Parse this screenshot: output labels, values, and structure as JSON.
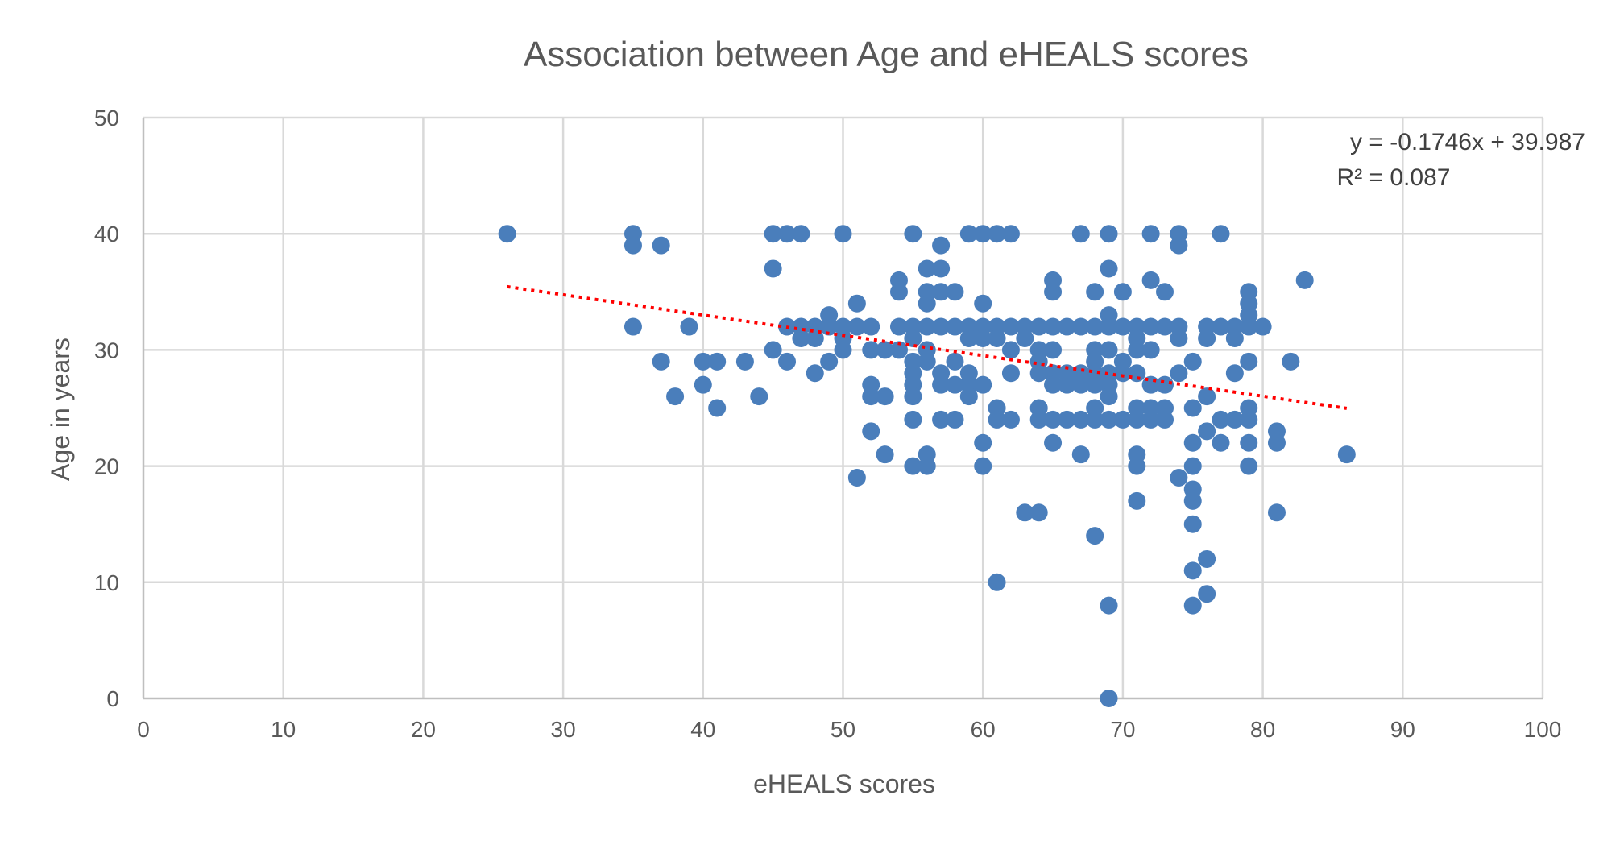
{
  "chart_data": {
    "type": "scatter",
    "title": "Association between Age and eHEALS scores",
    "xlabel": "eHEALS scores",
    "ylabel": "Age in years",
    "xlim": [
      0,
      100
    ],
    "ylim": [
      0,
      50
    ],
    "xticks": [
      0,
      10,
      20,
      30,
      40,
      50,
      60,
      70,
      80,
      90,
      100
    ],
    "yticks": [
      0,
      10,
      20,
      30,
      40,
      50
    ],
    "grid": true,
    "marker_color": "#4a7ebb",
    "trendline": {
      "type": "linear",
      "slope": -0.1746,
      "intercept": 39.987,
      "x_range": [
        26,
        86
      ],
      "color": "#ff0000",
      "style": "dotted",
      "equation": "y = -0.1746x + 39.987",
      "r_squared": "R² = 0.087"
    },
    "points": [
      [
        26,
        40
      ],
      [
        35,
        40
      ],
      [
        35,
        39
      ],
      [
        35,
        32
      ],
      [
        37,
        39
      ],
      [
        37,
        29
      ],
      [
        38,
        26
      ],
      [
        39,
        32
      ],
      [
        40,
        29
      ],
      [
        40,
        27
      ],
      [
        41,
        29
      ],
      [
        41,
        25
      ],
      [
        43,
        29
      ],
      [
        44,
        26
      ],
      [
        45,
        40
      ],
      [
        45,
        37
      ],
      [
        45,
        30
      ],
      [
        46,
        40
      ],
      [
        46,
        32
      ],
      [
        46,
        29
      ],
      [
        47,
        40
      ],
      [
        47,
        32
      ],
      [
        47,
        31
      ],
      [
        48,
        32
      ],
      [
        48,
        31
      ],
      [
        48,
        28
      ],
      [
        49,
        33
      ],
      [
        49,
        32
      ],
      [
        49,
        29
      ],
      [
        50,
        40
      ],
      [
        50,
        32
      ],
      [
        50,
        31
      ],
      [
        50,
        30
      ],
      [
        51,
        34
      ],
      [
        51,
        32
      ],
      [
        51,
        19
      ],
      [
        52,
        32
      ],
      [
        52,
        30
      ],
      [
        52,
        27
      ],
      [
        52,
        26
      ],
      [
        52,
        23
      ],
      [
        53,
        30
      ],
      [
        53,
        26
      ],
      [
        53,
        21
      ],
      [
        54,
        36
      ],
      [
        54,
        35
      ],
      [
        54,
        32
      ],
      [
        54,
        30
      ],
      [
        55,
        40
      ],
      [
        55,
        32
      ],
      [
        55,
        31
      ],
      [
        55,
        29
      ],
      [
        55,
        28
      ],
      [
        55,
        27
      ],
      [
        55,
        26
      ],
      [
        55,
        24
      ],
      [
        55,
        20
      ],
      [
        56,
        37
      ],
      [
        56,
        35
      ],
      [
        56,
        34
      ],
      [
        56,
        32
      ],
      [
        56,
        30
      ],
      [
        56,
        29
      ],
      [
        56,
        21
      ],
      [
        56,
        20
      ],
      [
        57,
        39
      ],
      [
        57,
        37
      ],
      [
        57,
        35
      ],
      [
        57,
        32
      ],
      [
        57,
        28
      ],
      [
        57,
        27
      ],
      [
        57,
        24
      ],
      [
        58,
        35
      ],
      [
        58,
        32
      ],
      [
        58,
        29
      ],
      [
        58,
        27
      ],
      [
        58,
        24
      ],
      [
        59,
        40
      ],
      [
        59,
        32
      ],
      [
        59,
        31
      ],
      [
        59,
        28
      ],
      [
        59,
        27
      ],
      [
        59,
        26
      ],
      [
        60,
        40
      ],
      [
        60,
        34
      ],
      [
        60,
        32
      ],
      [
        60,
        31
      ],
      [
        60,
        27
      ],
      [
        60,
        22
      ],
      [
        60,
        20
      ],
      [
        61,
        40
      ],
      [
        61,
        32
      ],
      [
        61,
        31
      ],
      [
        61,
        25
      ],
      [
        61,
        24
      ],
      [
        61,
        10
      ],
      [
        62,
        40
      ],
      [
        62,
        32
      ],
      [
        62,
        30
      ],
      [
        62,
        28
      ],
      [
        62,
        24
      ],
      [
        63,
        32
      ],
      [
        63,
        31
      ],
      [
        63,
        16
      ],
      [
        64,
        32
      ],
      [
        64,
        30
      ],
      [
        64,
        29
      ],
      [
        64,
        28
      ],
      [
        64,
        25
      ],
      [
        64,
        24
      ],
      [
        64,
        16
      ],
      [
        65,
        36
      ],
      [
        65,
        35
      ],
      [
        65,
        32
      ],
      [
        65,
        30
      ],
      [
        65,
        28
      ],
      [
        65,
        27
      ],
      [
        65,
        24
      ],
      [
        65,
        22
      ],
      [
        66,
        32
      ],
      [
        66,
        28
      ],
      [
        66,
        27
      ],
      [
        66,
        24
      ],
      [
        67,
        40
      ],
      [
        67,
        32
      ],
      [
        67,
        28
      ],
      [
        67,
        27
      ],
      [
        67,
        24
      ],
      [
        67,
        21
      ],
      [
        68,
        35
      ],
      [
        68,
        32
      ],
      [
        68,
        30
      ],
      [
        68,
        29
      ],
      [
        68,
        28
      ],
      [
        68,
        27
      ],
      [
        68,
        25
      ],
      [
        68,
        24
      ],
      [
        68,
        14
      ],
      [
        69,
        40
      ],
      [
        69,
        37
      ],
      [
        69,
        33
      ],
      [
        69,
        32
      ],
      [
        69,
        30
      ],
      [
        69,
        28
      ],
      [
        69,
        27
      ],
      [
        69,
        26
      ],
      [
        69,
        24
      ],
      [
        69,
        8
      ],
      [
        69,
        0
      ],
      [
        70,
        35
      ],
      [
        70,
        32
      ],
      [
        70,
        29
      ],
      [
        70,
        28
      ],
      [
        70,
        24
      ],
      [
        71,
        32
      ],
      [
        71,
        31
      ],
      [
        71,
        30
      ],
      [
        71,
        28
      ],
      [
        71,
        25
      ],
      [
        71,
        24
      ],
      [
        71,
        21
      ],
      [
        71,
        20
      ],
      [
        71,
        17
      ],
      [
        72,
        40
      ],
      [
        72,
        36
      ],
      [
        72,
        32
      ],
      [
        72,
        30
      ],
      [
        72,
        27
      ],
      [
        72,
        25
      ],
      [
        72,
        24
      ],
      [
        73,
        35
      ],
      [
        73,
        32
      ],
      [
        73,
        27
      ],
      [
        73,
        25
      ],
      [
        73,
        24
      ],
      [
        74,
        40
      ],
      [
        74,
        39
      ],
      [
        74,
        32
      ],
      [
        74,
        31
      ],
      [
        74,
        28
      ],
      [
        74,
        19
      ],
      [
        75,
        29
      ],
      [
        75,
        25
      ],
      [
        75,
        22
      ],
      [
        75,
        20
      ],
      [
        75,
        18
      ],
      [
        75,
        17
      ],
      [
        75,
        15
      ],
      [
        75,
        11
      ],
      [
        75,
        8
      ],
      [
        76,
        32
      ],
      [
        76,
        31
      ],
      [
        76,
        26
      ],
      [
        76,
        23
      ],
      [
        76,
        12
      ],
      [
        76,
        9
      ],
      [
        77,
        40
      ],
      [
        77,
        32
      ],
      [
        77,
        24
      ],
      [
        77,
        22
      ],
      [
        78,
        32
      ],
      [
        78,
        31
      ],
      [
        78,
        28
      ],
      [
        78,
        24
      ],
      [
        79,
        35
      ],
      [
        79,
        34
      ],
      [
        79,
        33
      ],
      [
        79,
        32
      ],
      [
        79,
        29
      ],
      [
        79,
        25
      ],
      [
        79,
        24
      ],
      [
        79,
        22
      ],
      [
        79,
        20
      ],
      [
        80,
        32
      ],
      [
        81,
        23
      ],
      [
        81,
        22
      ],
      [
        81,
        16
      ],
      [
        82,
        29
      ],
      [
        83,
        36
      ],
      [
        86,
        21
      ]
    ]
  }
}
